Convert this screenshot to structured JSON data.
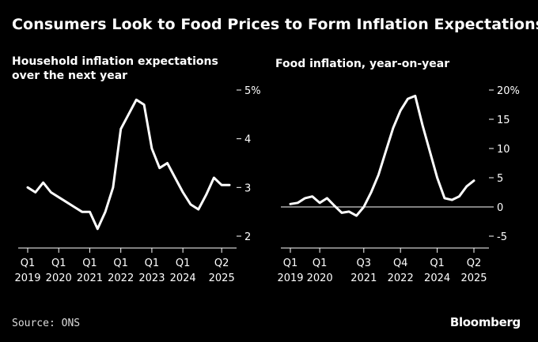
{
  "title": "Consumers Look to Food Prices to Form Inflation Expectations",
  "source": "Source: ONS",
  "brand": "Bloomberg",
  "colors": {
    "background": "#000000",
    "line": "#ffffff",
    "axis": "#ffffff"
  },
  "chart_data": [
    {
      "type": "line",
      "title": "Household inflation expectations\nover the next year",
      "unit": "%",
      "ylim": [
        2,
        5
      ],
      "yticks": [
        2,
        3,
        4,
        5
      ],
      "ytick_labels": [
        "2",
        "3",
        "4",
        "5%"
      ],
      "xlim": [
        2019.0,
        2025.5
      ],
      "xticks": [
        {
          "x": 2019.0,
          "top": "Q1",
          "bottom": "2019"
        },
        {
          "x": 2020.0,
          "top": "Q1",
          "bottom": "2020"
        },
        {
          "x": 2021.0,
          "top": "Q1",
          "bottom": "2021"
        },
        {
          "x": 2022.0,
          "top": "Q1",
          "bottom": "2022"
        },
        {
          "x": 2023.0,
          "top": "Q1",
          "bottom": "2023"
        },
        {
          "x": 2024.0,
          "top": "Q1",
          "bottom": "2024"
        },
        {
          "x": 2025.25,
          "top": "Q2",
          "bottom": "2025"
        }
      ],
      "series": [
        {
          "x": [
            2019.0,
            2019.25,
            2019.5,
            2019.75,
            2020.0,
            2020.25,
            2020.5,
            2020.75,
            2021.0,
            2021.25,
            2021.5,
            2021.75,
            2022.0,
            2022.25,
            2022.5,
            2022.75,
            2023.0,
            2023.25,
            2023.5,
            2023.75,
            2024.0,
            2024.25,
            2024.5,
            2024.75,
            2025.0,
            2025.25,
            2025.5
          ],
          "values": [
            3.0,
            2.9,
            3.1,
            2.9,
            2.8,
            2.7,
            2.6,
            2.5,
            2.5,
            2.15,
            2.5,
            3.0,
            4.2,
            4.5,
            4.8,
            4.7,
            3.8,
            3.4,
            3.5,
            3.2,
            2.9,
            2.65,
            2.55,
            2.85,
            3.2,
            3.05,
            3.05
          ]
        }
      ]
    },
    {
      "type": "line",
      "title": "Food inflation, year-on-year",
      "unit": "%",
      "ylim": [
        -5,
        20
      ],
      "yticks": [
        -5,
        0,
        5,
        10,
        15,
        20
      ],
      "ytick_labels": [
        "-5",
        "0",
        "5",
        "10",
        "15",
        "20%"
      ],
      "zero_line": true,
      "xlim": [
        2019.0,
        2025.25
      ],
      "xticks": [
        {
          "x": 2019.0,
          "top": "Q1",
          "bottom": "2019"
        },
        {
          "x": 2020.0,
          "top": "Q1",
          "bottom": "2020"
        },
        {
          "x": 2021.5,
          "top": "Q3",
          "bottom": "2021"
        },
        {
          "x": 2022.75,
          "top": "Q4",
          "bottom": "2022"
        },
        {
          "x": 2024.0,
          "top": "Q1",
          "bottom": "2024"
        },
        {
          "x": 2025.25,
          "top": "Q2",
          "bottom": "2025"
        }
      ],
      "series": [
        {
          "x": [
            2019.0,
            2019.25,
            2019.5,
            2019.75,
            2020.0,
            2020.25,
            2020.5,
            2020.75,
            2021.0,
            2021.25,
            2021.5,
            2021.75,
            2022.0,
            2022.25,
            2022.5,
            2022.75,
            2023.0,
            2023.25,
            2023.5,
            2023.75,
            2024.0,
            2024.25,
            2024.5,
            2024.75,
            2025.0,
            2025.25
          ],
          "values": [
            0.5,
            0.7,
            1.5,
            1.8,
            0.7,
            1.5,
            0.2,
            -1.0,
            -0.8,
            -1.5,
            0.0,
            2.5,
            5.5,
            9.5,
            13.5,
            16.5,
            18.5,
            19.0,
            14.0,
            9.5,
            5.0,
            1.5,
            1.2,
            1.8,
            3.5,
            4.5
          ]
        }
      ]
    }
  ]
}
